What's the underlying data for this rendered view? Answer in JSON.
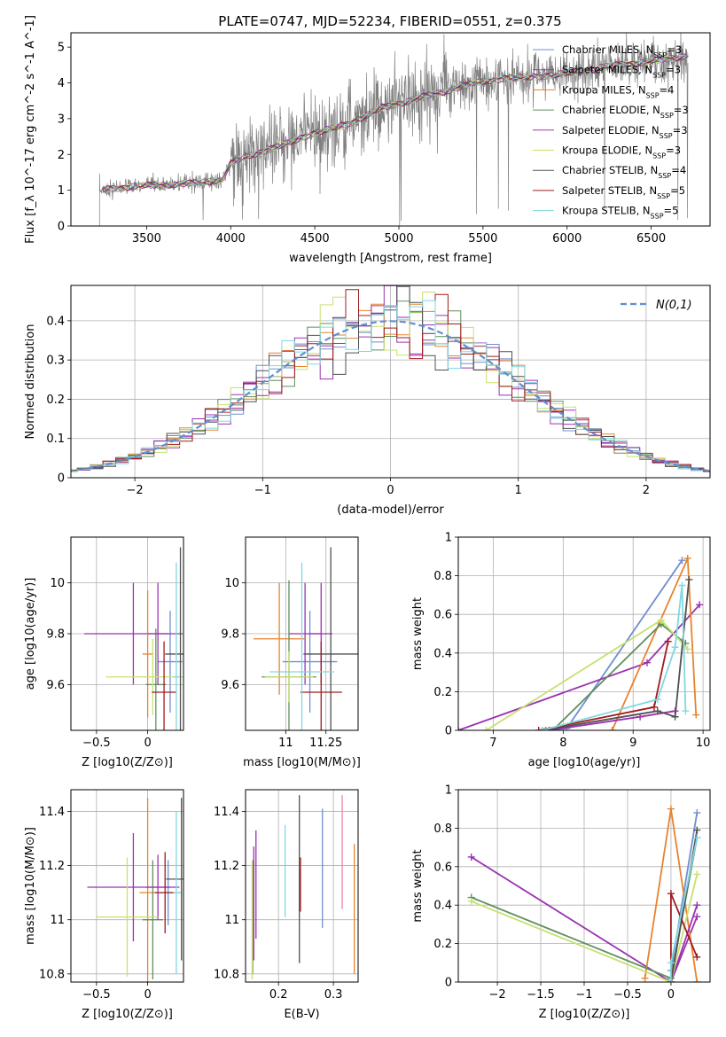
{
  "figure_title": "PLATE=0747, MJD=52234, FIBERID=0551, z=0.375",
  "colors": {
    "models": [
      "#6f8fd0",
      "#9a32b0",
      "#e8832e",
      "#5f8f5f",
      "#a030b0",
      "#c8e070",
      "#505050",
      "#a01a20",
      "#80d8e0"
    ],
    "data": "#808080",
    "normal_curve": "#5f8fd0"
  },
  "models": [
    {
      "name": "Chabrier MILES, N_SSP=3"
    },
    {
      "name": "Salpeter MILES, N_SSP=3"
    },
    {
      "name": "Kroupa MILES, N_SSP=4"
    },
    {
      "name": "Chabrier ELODIE, N_SSP=3"
    },
    {
      "name": "Salpeter ELODIE, N_SSP=3"
    },
    {
      "name": "Kroupa ELODIE, N_SSP=3"
    },
    {
      "name": "Chabrier STELIB, N_SSP=4"
    },
    {
      "name": "Salpeter STELIB, N_SSP=5"
    },
    {
      "name": "Kroupa STELIB, N_SSP=5"
    }
  ],
  "chart_data": [
    {
      "id": "spectrum",
      "type": "line",
      "title": "PLATE=0747, MJD=52234, FIBERID=0551, z=0.375",
      "xlabel": "wavelength [Angstrom, rest frame]",
      "ylabel": "Flux [f_λ 10^-17 erg cm^-2 s^-1 A^-1]",
      "xlim": [
        3050,
        6850
      ],
      "ylim": [
        0,
        5.4
      ],
      "xticks": [
        3500,
        4000,
        4500,
        5000,
        5500,
        6000,
        6500
      ],
      "yticks": [
        0,
        1,
        2,
        3,
        4,
        5
      ],
      "legend_position": "lower-right",
      "data_start": 3220,
      "model_continuum": [
        [
          3220,
          1.0
        ],
        [
          3400,
          1.1
        ],
        [
          3600,
          1.15
        ],
        [
          3800,
          1.2
        ],
        [
          3950,
          1.3
        ],
        [
          4000,
          1.75
        ],
        [
          4100,
          1.95
        ],
        [
          4300,
          2.25
        ],
        [
          4500,
          2.6
        ],
        [
          4700,
          2.85
        ],
        [
          4900,
          3.3
        ],
        [
          5100,
          3.55
        ],
        [
          5300,
          3.8
        ],
        [
          5500,
          4.05
        ],
        [
          5700,
          4.15
        ],
        [
          5900,
          4.2
        ],
        [
          6100,
          4.35
        ],
        [
          6300,
          4.5
        ],
        [
          6500,
          4.6
        ],
        [
          6700,
          4.75
        ]
      ]
    },
    {
      "id": "residuals",
      "type": "histogram",
      "xlabel": "(data-model)/error",
      "ylabel": "Normed distribution",
      "xlim": [
        -2.5,
        2.5
      ],
      "ylim": [
        0,
        0.49
      ],
      "xticks": [
        -2,
        -1,
        0,
        1,
        2
      ],
      "yticks": [
        0.0,
        0.1,
        0.2,
        0.3,
        0.4
      ],
      "grid": true,
      "legend": "N(0,1)",
      "legend_position": "top-right",
      "bin_width": 0.1
    },
    {
      "id": "age_vs_Z",
      "type": "errorbar",
      "xlabel": "Z [log10(Z/Z⊙)]",
      "ylabel": "age [log10(age/yr)]",
      "xlim": [
        -0.75,
        0.35
      ],
      "ylim": [
        9.42,
        10.18
      ],
      "xticks": [
        -0.5,
        0.0
      ],
      "yticks": [
        9.6,
        9.8,
        10.0
      ],
      "grid": true,
      "points": [
        {
          "x": 0.22,
          "y": 9.69,
          "xerr": 0.12,
          "yerr": 0.2
        },
        {
          "x": -0.14,
          "y": 9.8,
          "xerr": 0.48,
          "yerr": 0.2
        },
        {
          "x": 0.0,
          "y": 9.72,
          "xerr": 0.05,
          "yerr": 0.25
        },
        {
          "x": 0.08,
          "y": 9.6,
          "xerr": 0.1,
          "yerr": 0.22
        },
        {
          "x": 0.1,
          "y": 9.8,
          "xerr": 0.1,
          "yerr": 0.2
        },
        {
          "x": 0.05,
          "y": 9.63,
          "xerr": 0.46,
          "yerr": 0.15
        },
        {
          "x": 0.32,
          "y": 9.72,
          "xerr": 0.15,
          "yerr": 0.42
        },
        {
          "x": 0.16,
          "y": 9.57,
          "xerr": 0.12,
          "yerr": 0.2
        },
        {
          "x": 0.28,
          "y": 9.63,
          "xerr": 0.03,
          "yerr": 0.45
        }
      ]
    },
    {
      "id": "age_vs_mass",
      "type": "errorbar",
      "xlabel": "mass [log10(M/M⊙)]",
      "ylabel": "",
      "xlim": [
        10.75,
        11.45
      ],
      "ylim": [
        9.42,
        10.18
      ],
      "xticks": [
        11.0,
        11.25
      ],
      "yticks": [
        9.6,
        9.8,
        10.0
      ],
      "grid": true,
      "points": [
        {
          "x": 11.15,
          "y": 9.69,
          "xerr": 0.17,
          "yerr": 0.2
        },
        {
          "x": 11.12,
          "y": 9.8,
          "xerr": 0.1,
          "yerr": 0.2
        },
        {
          "x": 10.96,
          "y": 9.78,
          "xerr": 0.16,
          "yerr": 0.22
        },
        {
          "x": 11.02,
          "y": 9.63,
          "xerr": 0.17,
          "yerr": 0.38
        },
        {
          "x": 11.22,
          "y": 9.8,
          "xerr": 0.07,
          "yerr": 0.2
        },
        {
          "x": 11.02,
          "y": 9.63,
          "xerr": 0.15,
          "yerr": 0.1
        },
        {
          "x": 11.28,
          "y": 9.72,
          "xerr": 0.17,
          "yerr": 0.42
        },
        {
          "x": 11.22,
          "y": 9.57,
          "xerr": 0.13,
          "yerr": 0.2
        },
        {
          "x": 11.1,
          "y": 9.65,
          "xerr": 0.2,
          "yerr": 0.43
        }
      ]
    },
    {
      "id": "mass_weight_vs_age",
      "type": "line",
      "xlabel": "age [log10(age/yr)]",
      "ylabel": "mass weight",
      "xlim": [
        6.5,
        10.1
      ],
      "ylim": [
        0,
        1
      ],
      "xticks": [
        7,
        8,
        9,
        10
      ],
      "yticks": [
        0.0,
        0.2,
        0.4,
        0.6,
        0.8,
        1.0
      ],
      "grid": true,
      "series": [
        [
          [
            7.75,
            0.0
          ],
          [
            8.05,
            0.01
          ],
          [
            9.7,
            0.88
          ]
        ],
        [
          [
            6.5,
            0.0
          ],
          [
            9.2,
            0.35
          ],
          [
            9.95,
            0.65
          ]
        ],
        [
          [
            8.7,
            0.0
          ],
          [
            9.78,
            0.89
          ],
          [
            9.9,
            0.08
          ]
        ],
        [
          [
            7.85,
            0.0
          ],
          [
            9.4,
            0.55
          ],
          [
            9.75,
            0.45
          ]
        ],
        [
          [
            7.8,
            0.0
          ],
          [
            9.1,
            0.07
          ],
          [
            9.6,
            0.1
          ]
        ],
        [
          [
            6.9,
            0.0
          ],
          [
            9.4,
            0.57
          ],
          [
            9.78,
            0.42
          ]
        ],
        [
          [
            7.7,
            0.0
          ],
          [
            9.35,
            0.1
          ],
          [
            9.6,
            0.07
          ],
          [
            9.8,
            0.78
          ]
        ],
        [
          [
            7.65,
            0.0
          ],
          [
            9.3,
            0.12
          ],
          [
            9.5,
            0.46
          ]
        ],
        [
          [
            7.7,
            0.0
          ],
          [
            9.35,
            0.16
          ],
          [
            9.6,
            0.43
          ],
          [
            9.7,
            0.75
          ],
          [
            9.75,
            0.1
          ]
        ]
      ]
    },
    {
      "id": "mass_vs_Z",
      "type": "errorbar",
      "xlabel": "Z [log10(Z/Z⊙)]",
      "ylabel": "mass [log10(M/M⊙)]",
      "xlim": [
        -0.75,
        0.35
      ],
      "ylim": [
        10.77,
        11.48
      ],
      "xticks": [
        -0.5,
        0.0
      ],
      "yticks": [
        10.8,
        11.0,
        11.2,
        11.4
      ],
      "grid": true,
      "points": [
        {
          "x": 0.2,
          "y": 11.1,
          "xerr": 0.12,
          "yerr": 0.12
        },
        {
          "x": -0.14,
          "y": 11.12,
          "xerr": 0.45,
          "yerr": 0.2
        },
        {
          "x": 0.0,
          "y": 11.1,
          "xerr": 0.08,
          "yerr": 0.35
        },
        {
          "x": 0.05,
          "y": 11.0,
          "xerr": 0.1,
          "yerr": 0.22
        },
        {
          "x": 0.1,
          "y": 11.12,
          "xerr": 0.12,
          "yerr": 0.12
        },
        {
          "x": -0.2,
          "y": 11.01,
          "xerr": 0.3,
          "yerr": 0.22
        },
        {
          "x": 0.33,
          "y": 11.15,
          "xerr": 0.15,
          "yerr": 0.3
        },
        {
          "x": 0.17,
          "y": 11.1,
          "xerr": 0.1,
          "yerr": 0.15
        },
        {
          "x": 0.28,
          "y": 11.1,
          "xerr": 0.03,
          "yerr": 0.3
        }
      ]
    },
    {
      "id": "mass_vs_ebv",
      "type": "errorbar",
      "xlabel": "E(B-V)",
      "ylabel": "",
      "xlim": [
        0.14,
        0.345
      ],
      "ylim": [
        10.77,
        11.48
      ],
      "xticks": [
        0.2,
        0.3
      ],
      "yticks": [
        10.8,
        11.0,
        11.2,
        11.4
      ],
      "grid": true,
      "points": [
        {
          "x": 0.28,
          "y": 11.19,
          "yerr": 0.22
        },
        {
          "x": 0.159,
          "y": 11.13,
          "yerr": 0.2
        },
        {
          "x": 0.338,
          "y": 11.04,
          "yerr": 0.24
        },
        {
          "x": 0.153,
          "y": 11.01,
          "yerr": 0.21
        },
        {
          "x": 0.155,
          "y": 11.06,
          "yerr": 0.21
        },
        {
          "x": 0.152,
          "y": 11.0,
          "yerr": 0.22
        },
        {
          "x": 0.238,
          "y": 11.15,
          "yerr": 0.31
        },
        {
          "x": 0.24,
          "y": 11.13,
          "yerr": 0.1
        },
        {
          "x": 0.212,
          "y": 11.18,
          "yerr": 0.17
        }
      ],
      "extra_bar": {
        "x": 0.316,
        "y": 11.25,
        "yerr": 0.21,
        "color": "#f080b0"
      }
    },
    {
      "id": "mass_weight_vs_Z",
      "type": "line",
      "xlabel": "Z [log10(Z/Z⊙)]",
      "ylabel": "mass weight",
      "xlim": [
        -2.45,
        0.45
      ],
      "ylim": [
        0,
        1
      ],
      "xticks": [
        -2.0,
        -1.5,
        -1.0,
        -0.5,
        0.0
      ],
      "yticks": [
        0.0,
        0.2,
        0.4,
        0.6,
        0.8,
        1.0
      ],
      "grid": true,
      "series": [
        [
          [
            0.0,
            0.0
          ],
          [
            0.0,
            0.06
          ],
          [
            0.3,
            0.88
          ]
        ],
        [
          [
            -2.3,
            0.65
          ],
          [
            0.0,
            0.0
          ],
          [
            0.3,
            0.34
          ]
        ],
        [
          [
            -0.3,
            0.02
          ],
          [
            0.0,
            0.9
          ],
          [
            0.3,
            0.0
          ]
        ],
        [
          [
            -2.3,
            0.44
          ],
          [
            0.0,
            0.02
          ],
          [
            0.3,
            0.75
          ]
        ],
        [
          [
            0.0,
            0.0
          ],
          [
            0.3,
            0.4
          ]
        ],
        [
          [
            -2.3,
            0.42
          ],
          [
            0.0,
            0.0
          ],
          [
            0.3,
            0.56
          ]
        ],
        [
          [
            0.0,
            0.0
          ],
          [
            0.3,
            0.79
          ]
        ],
        [
          [
            0.0,
            0.0
          ],
          [
            0.0,
            0.46
          ],
          [
            0.3,
            0.13
          ]
        ],
        [
          [
            0.0,
            0.0
          ],
          [
            0.0,
            0.1
          ],
          [
            0.3,
            0.75
          ]
        ]
      ]
    }
  ]
}
